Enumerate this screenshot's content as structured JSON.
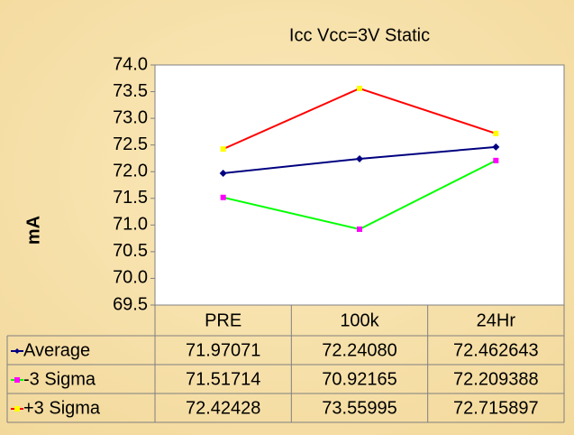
{
  "chart_data": {
    "type": "line",
    "title": "Icc Vcc=3V Static",
    "y_label": "mA",
    "categories": [
      "PRE",
      "100k",
      "24Hr"
    ],
    "series": [
      {
        "name": "Average",
        "color": "#000080",
        "marker_color": "#000080",
        "marker": "diamond",
        "values": [
          71.97071,
          72.2408,
          72.462643
        ],
        "value_labels": [
          "71.97071",
          "72.24080",
          "72.462643"
        ]
      },
      {
        "name": "-3 Sigma",
        "color": "#00ff00",
        "marker_color": "#ff00ff",
        "marker": "square",
        "values": [
          71.51714,
          70.92165,
          72.209388
        ],
        "value_labels": [
          "71.51714",
          "70.92165",
          "72.209388"
        ]
      },
      {
        "name": "+3 Sigma",
        "color": "#ff0000",
        "marker_color": "#ffff00",
        "marker": "square",
        "values": [
          72.42428,
          73.55995,
          72.715897
        ],
        "value_labels": [
          "72.42428",
          "73.55995",
          "72.715897"
        ]
      }
    ],
    "ylim": [
      69.5,
      74
    ],
    "yticks": [
      {
        "value": 69.5,
        "label": "69.5"
      },
      {
        "value": 70,
        "label": "70.0"
      },
      70.5,
      {
        "value": 71,
        "label": "71.0"
      },
      71.5,
      {
        "value": 72,
        "label": "72.0"
      },
      72.5,
      {
        "value": 73,
        "label": "73.0"
      },
      73.5,
      {
        "value": 74,
        "label": "74.0"
      }
    ],
    "data_table": true
  }
}
